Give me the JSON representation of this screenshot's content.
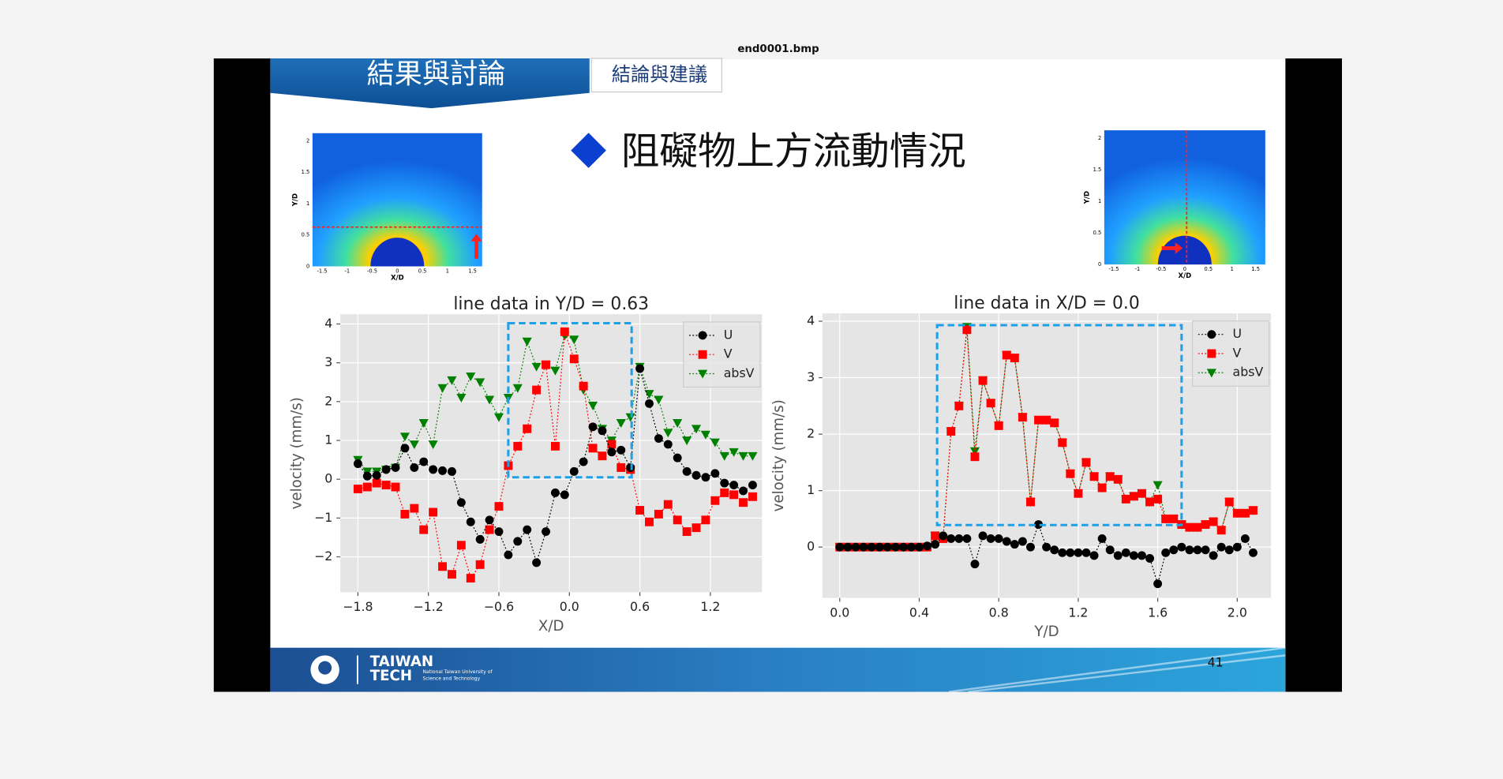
{
  "window_title": "end0001.bmp",
  "slide": {
    "header_title": "結果與討論",
    "header_tab": "結論與建議",
    "heading": "阻礙物上方流動情況",
    "page_number": "41",
    "footer": {
      "logo_line1": "TAIWAN",
      "logo_line2": "TECH",
      "university_line1": "National Taiwan University of",
      "university_line2": "Science and Technology"
    },
    "thumbnails": [
      {
        "xlabel": "X/D",
        "ylabel": "Y/D",
        "xticks": [
          "-1.5",
          "-1",
          "-0.5",
          "0",
          "0.5",
          "1",
          "1.5"
        ],
        "yticks": [
          "0",
          "0.5",
          "1",
          "1.5",
          "2"
        ]
      },
      {
        "xlabel": "X/D",
        "ylabel": "Y/D",
        "xticks": [
          "-1.5",
          "-1",
          "-0.5",
          "0",
          "0.5",
          "1",
          "1.5"
        ],
        "yticks": [
          "0",
          "0.5",
          "1",
          "1.5",
          "2"
        ]
      }
    ]
  },
  "chart_data": [
    {
      "type": "line",
      "title": "line data in Y/D = 0.63",
      "x_label": "X/D",
      "y_label": "velocity (mm/s)",
      "xlim": [
        -1.95,
        1.64
      ],
      "ylim": [
        -2.91,
        4.25
      ],
      "xticks": [
        {
          "value": -1.8,
          "label": "−1.8"
        },
        {
          "value": -1.2,
          "label": "−1.2"
        },
        {
          "value": -0.6,
          "label": "−0.6"
        },
        {
          "value": 0,
          "label": "0.0"
        },
        {
          "value": 0.6,
          "label": "0.6"
        },
        {
          "value": 1.2,
          "label": "1.2"
        }
      ],
      "yticks": [
        {
          "value": -2,
          "label": "−2"
        },
        {
          "value": -1,
          "label": "−1"
        },
        0,
        1,
        2,
        3,
        4
      ],
      "grid": true,
      "background": "#e5e5e5",
      "legend": "upper right",
      "highlight": {
        "xlim": [
          -0.52,
          0.53
        ],
        "ylim": [
          0.05,
          4.02
        ],
        "color": "#1ea0e6"
      },
      "x": [
        -1.8,
        -1.72,
        -1.64,
        -1.56,
        -1.48,
        -1.4,
        -1.32,
        -1.24,
        -1.16,
        -1.08,
        -1.0,
        -0.92,
        -0.84,
        -0.76,
        -0.68,
        -0.6,
        -0.52,
        -0.44,
        -0.36,
        -0.28,
        -0.2,
        -0.12,
        -0.04,
        0.04,
        0.12,
        0.2,
        0.28,
        0.36,
        0.44,
        0.52,
        0.6,
        0.68,
        0.76,
        0.84,
        0.92,
        1.0,
        1.08,
        1.16,
        1.24,
        1.32,
        1.4,
        1.48,
        1.56
      ],
      "series": [
        {
          "name": "U",
          "color": "#000000",
          "marker": "circle",
          "values": [
            0.4,
            0.08,
            0.1,
            0.25,
            0.3,
            0.8,
            0.3,
            0.45,
            0.25,
            0.22,
            0.2,
            -0.6,
            -1.1,
            -1.55,
            -1.05,
            -1.35,
            -1.95,
            -1.6,
            -1.3,
            -2.15,
            -1.35,
            -0.35,
            -0.4,
            0.2,
            0.45,
            1.35,
            1.25,
            0.7,
            0.75,
            0.3,
            2.85,
            1.95,
            1.05,
            0.9,
            0.55,
            0.2,
            0.1,
            0.05,
            0.15,
            -0.1,
            -0.15,
            -0.3,
            -0.15
          ]
        },
        {
          "name": "V",
          "color": "#ff0000",
          "marker": "square",
          "values": [
            -0.25,
            -0.2,
            -0.1,
            -0.15,
            -0.2,
            -0.9,
            -0.75,
            -1.3,
            -0.85,
            -2.25,
            -2.45,
            -1.7,
            -2.55,
            -2.2,
            -1.3,
            -0.7,
            0.35,
            0.85,
            1.3,
            2.3,
            2.95,
            0.85,
            3.8,
            3.1,
            2.4,
            0.8,
            0.6,
            0.9,
            0.3,
            0.25,
            -0.8,
            -1.1,
            -0.9,
            -0.65,
            -1.05,
            -1.35,
            -1.25,
            -1.05,
            -0.55,
            -0.35,
            -0.4,
            -0.6,
            -0.45
          ]
        },
        {
          "name": "absV",
          "color": "#008000",
          "marker": "triangle-down",
          "values": [
            0.5,
            0.2,
            0.2,
            0.25,
            0.3,
            1.1,
            0.9,
            1.45,
            0.9,
            2.35,
            2.55,
            2.1,
            2.65,
            2.5,
            2.05,
            1.6,
            2.1,
            2.35,
            3.55,
            2.9,
            2.95,
            2.8,
            3.7,
            3.6,
            2.3,
            1.9,
            1.3,
            1.0,
            1.45,
            1.6,
            2.9,
            2.2,
            2.05,
            1.2,
            1.45,
            1.0,
            1.3,
            1.15,
            0.95,
            0.6,
            0.7,
            0.6,
            0.6
          ]
        }
      ]
    },
    {
      "type": "line",
      "title": "line data in X/D = 0.0",
      "x_label": "Y/D",
      "y_label": "velocity (mm/s)",
      "xlim": [
        -0.087,
        2.17
      ],
      "ylim": [
        -0.9,
        4.14
      ],
      "xticks": [
        {
          "value": 0,
          "label": "0.0"
        },
        0.4,
        0.8,
        1.2,
        1.6,
        {
          "value": 2,
          "label": "2.0"
        }
      ],
      "yticks": [
        0,
        1,
        2,
        3,
        4
      ],
      "grid": true,
      "background": "#e5e5e5",
      "legend": "upper right",
      "highlight": {
        "xlim": [
          0.49,
          1.72
        ],
        "ylim": [
          0.39,
          3.93
        ],
        "color": "#1ea0e6"
      },
      "x": [
        0,
        0.04,
        0.08,
        0.12,
        0.16,
        0.2,
        0.24,
        0.28,
        0.32,
        0.36,
        0.4,
        0.44,
        0.48,
        0.52,
        0.56,
        0.6,
        0.64,
        0.68,
        0.72,
        0.76,
        0.8,
        0.84,
        0.88,
        0.92,
        0.96,
        1.0,
        1.04,
        1.08,
        1.12,
        1.16,
        1.2,
        1.24,
        1.28,
        1.32,
        1.36,
        1.4,
        1.44,
        1.48,
        1.52,
        1.56,
        1.6,
        1.64,
        1.68,
        1.72,
        1.76,
        1.8,
        1.84,
        1.88,
        1.92,
        1.96,
        2.0,
        2.04,
        2.08
      ],
      "series": [
        {
          "name": "U",
          "color": "#000000",
          "marker": "circle",
          "values": [
            0,
            0,
            0,
            0,
            0,
            0,
            0,
            0,
            0,
            0,
            0,
            0.02,
            0.05,
            0.2,
            0.15,
            0.15,
            0.15,
            -0.3,
            0.2,
            0.15,
            0.15,
            0.1,
            0.05,
            0.1,
            0.0,
            0.4,
            0.0,
            -0.05,
            -0.1,
            -0.1,
            -0.1,
            -0.1,
            -0.15,
            0.15,
            -0.05,
            -0.15,
            -0.1,
            -0.15,
            -0.15,
            -0.2,
            -0.65,
            -0.1,
            -0.05,
            0.0,
            -0.05,
            -0.05,
            -0.05,
            -0.15,
            0.0,
            -0.05,
            0.0,
            0.15,
            -0.1
          ]
        },
        {
          "name": "V",
          "color": "#ff0000",
          "marker": "square",
          "values": [
            0,
            0,
            0,
            0,
            0,
            0,
            0,
            0,
            0,
            0,
            0,
            0,
            0.2,
            0.15,
            2.05,
            2.5,
            3.85,
            1.6,
            2.95,
            2.55,
            2.15,
            3.4,
            3.35,
            2.3,
            0.8,
            2.25,
            2.25,
            2.2,
            1.85,
            1.3,
            0.95,
            1.5,
            1.25,
            1.05,
            1.25,
            1.2,
            0.85,
            0.9,
            0.95,
            0.8,
            0.85,
            0.5,
            0.5,
            0.4,
            0.35,
            0.35,
            0.4,
            0.45,
            0.3,
            0.8,
            0.6,
            0.6,
            0.65
          ]
        },
        {
          "name": "absV",
          "color": "#008000",
          "marker": "triangle-down",
          "values": [
            0,
            0,
            0,
            0,
            0,
            0,
            0,
            0,
            0,
            0,
            0,
            0,
            0.2,
            0.15,
            2.05,
            2.5,
            3.9,
            1.7,
            2.95,
            2.55,
            2.15,
            3.4,
            3.35,
            2.3,
            0.8,
            2.25,
            2.25,
            2.2,
            1.85,
            1.3,
            0.95,
            1.5,
            1.25,
            1.05,
            1.25,
            1.2,
            0.85,
            0.9,
            0.95,
            0.8,
            1.1,
            0.5,
            0.5,
            0.4,
            0.35,
            0.35,
            0.4,
            0.45,
            0.3,
            0.8,
            0.6,
            0.6,
            0.65
          ]
        }
      ]
    }
  ]
}
